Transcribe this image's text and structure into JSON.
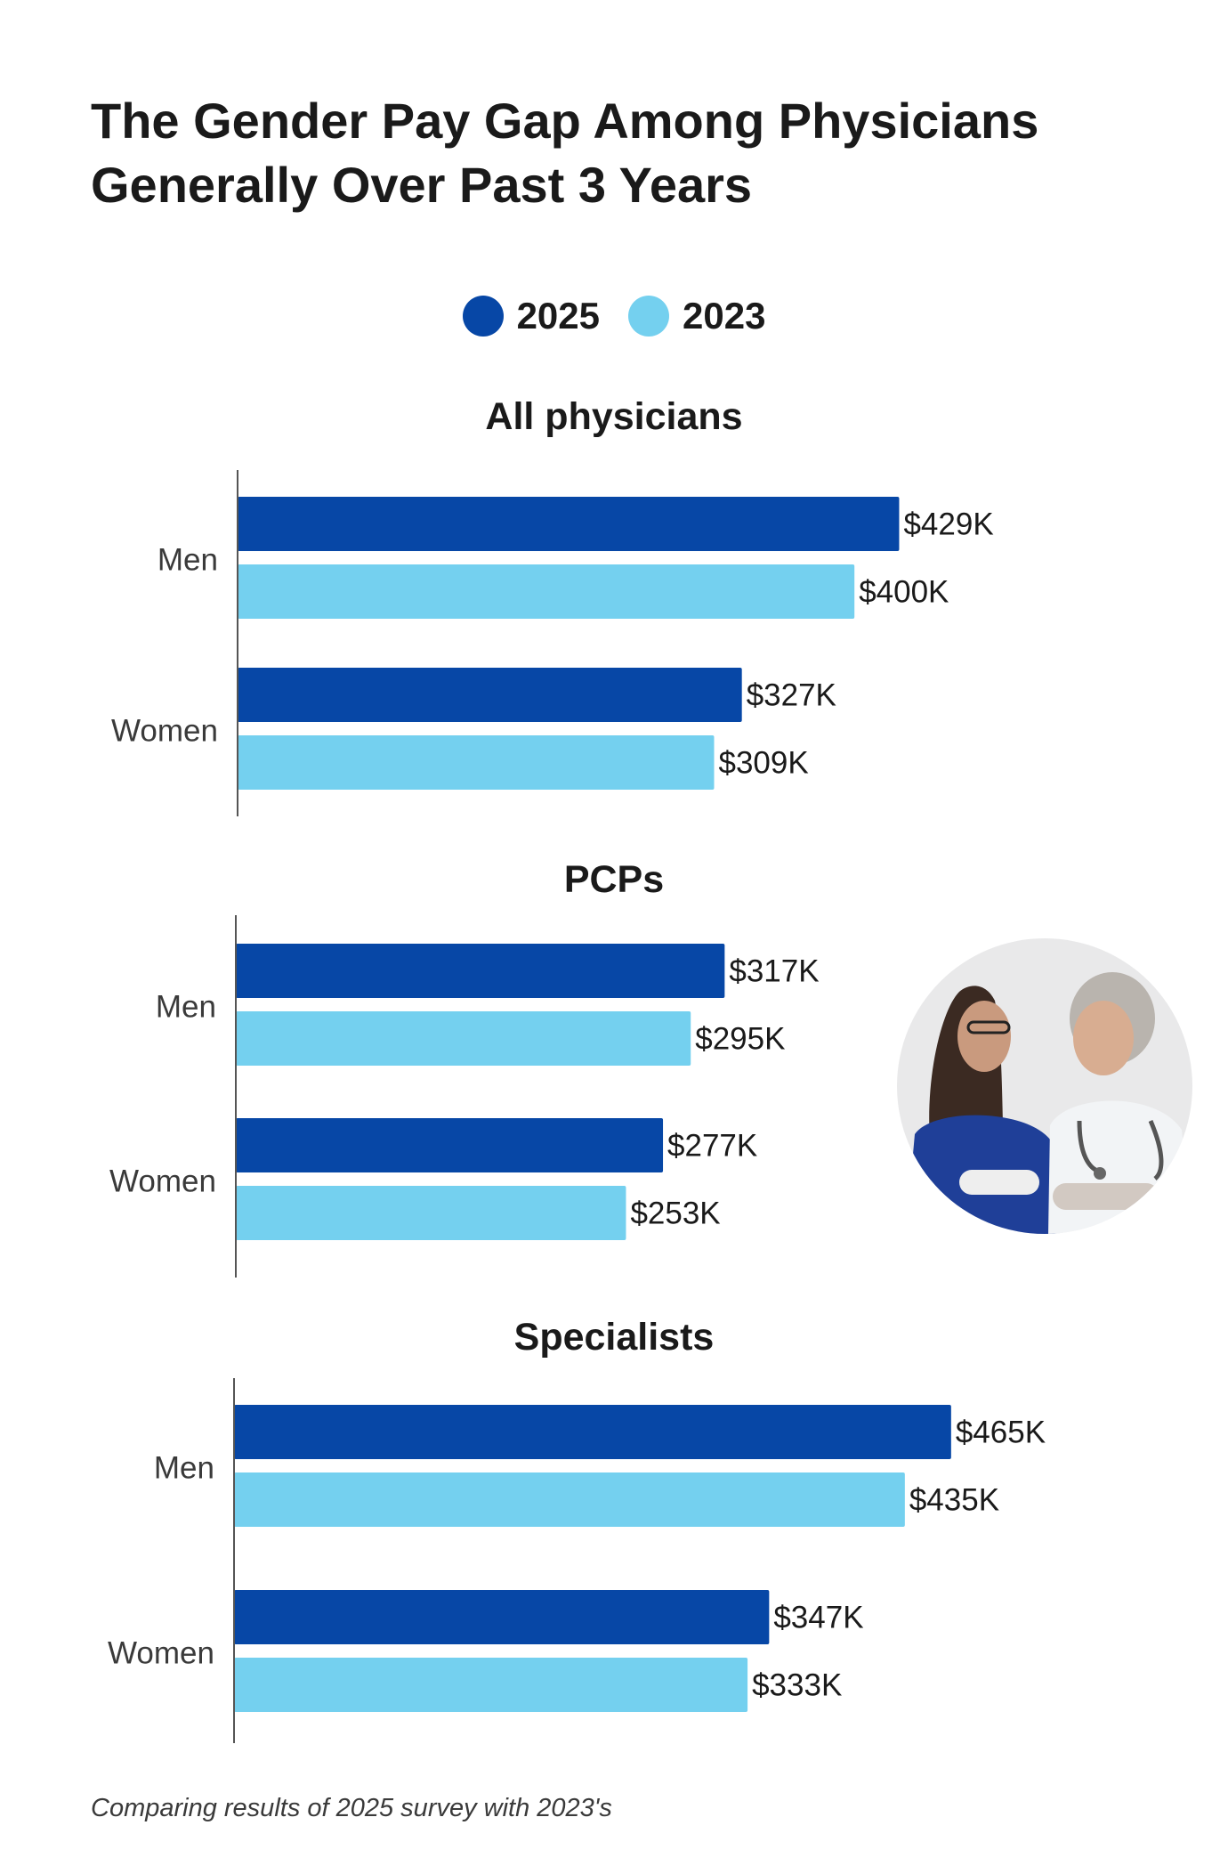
{
  "title_lines": [
    "The Gender Pay Gap Among Physicians",
    "Generally Over Past 3 Years"
  ],
  "legend": [
    {
      "label": "2025",
      "color": "#0747a6"
    },
    {
      "label": "2023",
      "color": "#74d0ef"
    }
  ],
  "footnote": "Comparing results of 2025 survey with 2023's",
  "photo": {
    "icon": "two-physicians-photo"
  },
  "chart_data": [
    {
      "type": "bar",
      "orientation": "horizontal",
      "title": "All physicians",
      "categories": [
        "Men",
        "Women"
      ],
      "series": [
        {
          "name": "2025",
          "values": [
            429,
            327
          ],
          "labels": [
            "$429K",
            "$327K"
          ]
        },
        {
          "name": "2023",
          "values": [
            400,
            309
          ],
          "labels": [
            "$400K",
            "$309K"
          ]
        }
      ],
      "unit": "$K"
    },
    {
      "type": "bar",
      "orientation": "horizontal",
      "title": "PCPs",
      "categories": [
        "Men",
        "Women"
      ],
      "series": [
        {
          "name": "2025",
          "values": [
            317,
            277
          ],
          "labels": [
            "$317K",
            "$277K"
          ]
        },
        {
          "name": "2023",
          "values": [
            295,
            253
          ],
          "labels": [
            "$295K",
            "$253K"
          ]
        }
      ],
      "unit": "$K"
    },
    {
      "type": "bar",
      "orientation": "horizontal",
      "title": "Specialists",
      "categories": [
        "Men",
        "Women"
      ],
      "series": [
        {
          "name": "2025",
          "values": [
            465,
            347
          ],
          "labels": [
            "$465K",
            "$347K"
          ]
        },
        {
          "name": "2023",
          "values": [
            435,
            333
          ],
          "labels": [
            "$435K",
            "$333K"
          ]
        }
      ],
      "unit": "$K"
    }
  ]
}
